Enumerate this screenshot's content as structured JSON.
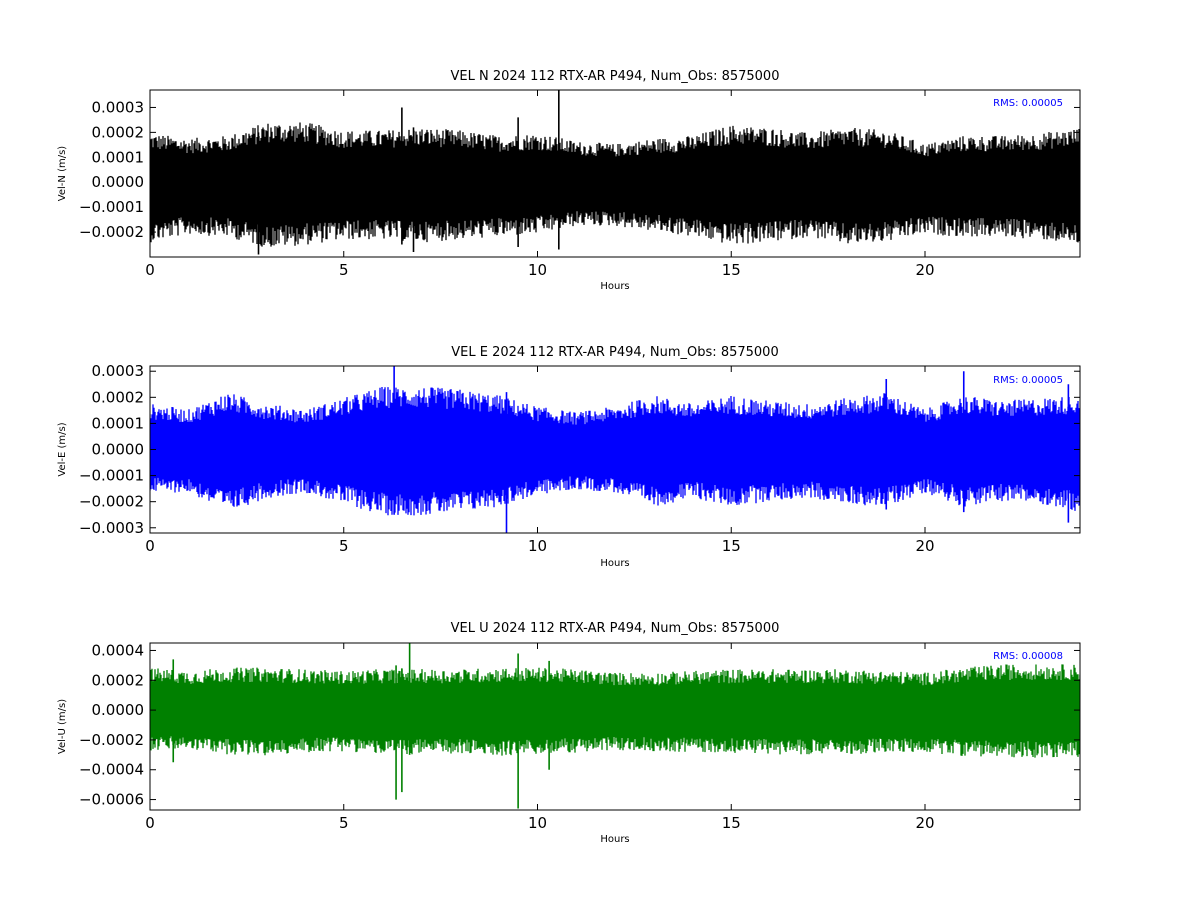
{
  "chart_data": [
    {
      "type": "line",
      "title": "VEL N 2024 112 RTX-AR  P494, Num_Obs: 8575000",
      "xlabel": "Hours",
      "ylabel": "Vel-N (m/s)",
      "xlim": [
        0,
        24
      ],
      "ylim": [
        -0.0003,
        0.00037
      ],
      "x_ticks": [
        0,
        5,
        10,
        15,
        20
      ],
      "x_tick_labels": [
        "0",
        "5",
        "10",
        "15",
        "20"
      ],
      "y_ticks": [
        -0.0002,
        -0.0001,
        0.0,
        0.0001,
        0.0002,
        0.0003
      ],
      "y_tick_labels": [
        "−0.0002",
        "−0.0001",
        "0.0000",
        "0.0001",
        "0.0002",
        "0.0003"
      ],
      "color": "#000000",
      "annotation": "RMS:  0.00005",
      "envelope": {
        "hours": [
          0,
          1,
          2,
          3,
          4,
          5,
          6,
          7,
          8,
          9,
          10,
          11,
          12,
          13,
          14,
          15,
          16,
          17,
          18,
          19,
          20,
          21,
          22,
          23,
          24
        ],
        "upper": [
          0.00018,
          0.00016,
          0.00017,
          0.00022,
          0.00022,
          0.00019,
          0.00019,
          0.0002,
          0.00019,
          0.00017,
          0.00018,
          0.00015,
          0.00014,
          0.00016,
          0.00017,
          0.00021,
          0.0002,
          0.00018,
          0.0002,
          0.00019,
          0.00014,
          0.00017,
          0.00017,
          0.00018,
          0.0002
        ],
        "lower": [
          -0.00022,
          -0.00019,
          -0.0002,
          -0.00024,
          -0.00023,
          -0.00021,
          -0.00021,
          -0.00022,
          -0.00021,
          -0.0002,
          -0.00019,
          -0.00016,
          -0.00016,
          -0.00018,
          -0.0002,
          -0.00023,
          -0.00022,
          -0.0002,
          -0.00023,
          -0.00022,
          -0.00019,
          -0.0002,
          -0.0002,
          -0.00021,
          -0.00023
        ]
      },
      "spikes": [
        {
          "hour": 10.55,
          "min": -0.00027,
          "max": 0.00037
        },
        {
          "hour": 2.8,
          "min": -0.00029,
          "max": 0.0002
        },
        {
          "hour": 6.8,
          "min": -0.00028,
          "max": 0.00022
        },
        {
          "hour": 6.5,
          "min": -0.00025,
          "max": 0.0003
        },
        {
          "hour": 9.5,
          "min": -0.00026,
          "max": 0.00026
        }
      ]
    },
    {
      "type": "line",
      "title": "VEL E 2024 112 RTX-AR  P494, Num_Obs: 8575000",
      "xlabel": "Hours",
      "ylabel": "Vel-E (m/s)",
      "xlim": [
        0,
        24
      ],
      "ylim": [
        -0.00032,
        0.00032
      ],
      "x_ticks": [
        0,
        5,
        10,
        15,
        20
      ],
      "x_tick_labels": [
        "0",
        "5",
        "10",
        "15",
        "20"
      ],
      "y_ticks": [
        -0.0003,
        -0.0002,
        -0.0001,
        0.0,
        0.0001,
        0.0002,
        0.0003
      ],
      "y_tick_labels": [
        "−0.0003",
        "−0.0002",
        "−0.0001",
        "0.0000",
        "0.0001",
        "0.0002",
        "0.0003"
      ],
      "color": "#0000ff",
      "annotation": "RMS:  0.00005",
      "envelope": {
        "hours": [
          0,
          1,
          2,
          3,
          4,
          5,
          6,
          7,
          8,
          9,
          10,
          11,
          12,
          13,
          14,
          15,
          16,
          17,
          18,
          19,
          20,
          21,
          22,
          23,
          24
        ],
        "upper": [
          0.00016,
          0.00014,
          0.0002,
          0.00016,
          0.00014,
          0.00018,
          0.00022,
          0.00022,
          0.00021,
          0.00019,
          0.00015,
          0.00013,
          0.00015,
          0.00019,
          0.00016,
          0.00019,
          0.00017,
          0.00016,
          0.00018,
          0.0002,
          0.00014,
          0.00019,
          0.00017,
          0.00018,
          0.00019
        ],
        "lower": [
          -0.00015,
          -0.00015,
          -0.00022,
          -0.00017,
          -0.00015,
          -0.00019,
          -0.00023,
          -0.00023,
          -0.00022,
          -0.0002,
          -0.00016,
          -0.00014,
          -0.00015,
          -0.0002,
          -0.00017,
          -0.0002,
          -0.00018,
          -0.00017,
          -0.00019,
          -0.0002,
          -0.00015,
          -0.0002,
          -0.00018,
          -0.00019,
          -0.00022
        ]
      },
      "spikes": [
        {
          "hour": 6.3,
          "min": -0.00025,
          "max": 0.00032
        },
        {
          "hour": 9.2,
          "min": -0.00032,
          "max": 0.00022
        },
        {
          "hour": 21.0,
          "min": -0.00024,
          "max": 0.0003
        },
        {
          "hour": 23.7,
          "min": -0.00028,
          "max": 0.00025
        },
        {
          "hour": 19.0,
          "min": -0.00023,
          "max": 0.00027
        }
      ]
    },
    {
      "type": "line",
      "title": "VEL U 2024 112 RTX-AR  P494, Num_Obs: 8575000",
      "xlabel": "Hours",
      "ylabel": "Vel-U (m/s)",
      "xlim": [
        0,
        24
      ],
      "ylim": [
        -0.00067,
        0.00045
      ],
      "x_ticks": [
        0,
        5,
        10,
        15,
        20
      ],
      "x_tick_labels": [
        "0",
        "5",
        "10",
        "15",
        "20"
      ],
      "y_ticks": [
        -0.0006,
        -0.0004,
        -0.0002,
        0.0,
        0.0002,
        0.0004
      ],
      "y_tick_labels": [
        "−0.0006",
        "−0.0004",
        "−0.0002",
        "0.0000",
        "0.0002",
        "0.0004"
      ],
      "color": "#008000",
      "annotation": "RMS:  0.00008",
      "envelope": {
        "hours": [
          0,
          1,
          2,
          3,
          4,
          5,
          6,
          7,
          8,
          9,
          10,
          11,
          12,
          13,
          14,
          15,
          16,
          17,
          18,
          19,
          20,
          21,
          22,
          23,
          24
        ],
        "upper": [
          0.00026,
          0.00024,
          0.00026,
          0.00026,
          0.00025,
          0.00024,
          0.00025,
          0.00025,
          0.00025,
          0.00026,
          0.00026,
          0.00025,
          0.00023,
          0.00023,
          0.00024,
          0.00025,
          0.00025,
          0.00025,
          0.00025,
          0.00024,
          0.00023,
          0.00026,
          0.00028,
          0.00028,
          0.00028
        ],
        "lower": [
          -0.00025,
          -0.00024,
          -0.00027,
          -0.00028,
          -0.00026,
          -0.00025,
          -0.00027,
          -0.00027,
          -0.00027,
          -0.00028,
          -0.00027,
          -0.00026,
          -0.00025,
          -0.00025,
          -0.00026,
          -0.00026,
          -0.00027,
          -0.00027,
          -0.00027,
          -0.00026,
          -0.00026,
          -0.00028,
          -0.00029,
          -0.00029,
          -0.00029
        ]
      },
      "spikes": [
        {
          "hour": 6.35,
          "min": -0.0006,
          "max": 0.0003
        },
        {
          "hour": 6.5,
          "min": -0.00055,
          "max": 0.00028
        },
        {
          "hour": 6.7,
          "min": -0.0003,
          "max": 0.00045
        },
        {
          "hour": 9.5,
          "min": -0.00066,
          "max": 0.00038
        },
        {
          "hour": 0.6,
          "min": -0.00035,
          "max": 0.00034
        },
        {
          "hour": 10.3,
          "min": -0.0004,
          "max": 0.00033
        }
      ]
    }
  ]
}
